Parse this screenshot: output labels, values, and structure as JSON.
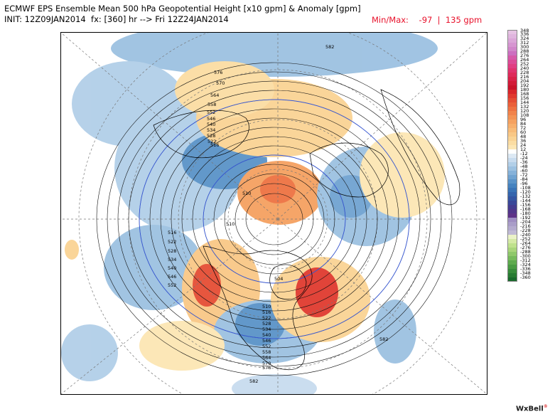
{
  "header": {
    "title_line1": "ECMWF EPS Ensemble Mean 500 hPa Geopotential Height [x10 gpm] & Anomaly [gpm]",
    "title_line2": "INIT: 12Z09JAN2014  fx: [360] hr --> Fri 12Z24JAN2014",
    "minmax": "Min/Max:    -97  |  135 gpm"
  },
  "colorbar": {
    "levels": [
      {
        "label": "348",
        "color": "#e6c3e3"
      },
      {
        "label": "336",
        "color": "#e0b5de"
      },
      {
        "label": "324",
        "color": "#dba6d8"
      },
      {
        "label": "312",
        "color": "#d696d1"
      },
      {
        "label": "300",
        "color": "#d186ca"
      },
      {
        "label": "288",
        "color": "#cc6fc0"
      },
      {
        "label": "276",
        "color": "#d65aa9"
      },
      {
        "label": "264",
        "color": "#dc4b96"
      },
      {
        "label": "252",
        "color": "#e03e82"
      },
      {
        "label": "240",
        "color": "#e0336d"
      },
      {
        "label": "228",
        "color": "#de2a5a"
      },
      {
        "label": "216",
        "color": "#d92248"
      },
      {
        "label": "204",
        "color": "#d21b38"
      },
      {
        "label": "192",
        "color": "#c9142b"
      },
      {
        "label": "180",
        "color": "#d8262b"
      },
      {
        "label": "168",
        "color": "#e03a2f"
      },
      {
        "label": "156",
        "color": "#e54e34"
      },
      {
        "label": "144",
        "color": "#ea603a"
      },
      {
        "label": "132",
        "color": "#ee7242"
      },
      {
        "label": "120",
        "color": "#f1834b"
      },
      {
        "label": "108",
        "color": "#f39355"
      },
      {
        "label": "96",
        "color": "#f5a160"
      },
      {
        "label": "84",
        "color": "#f7af6c"
      },
      {
        "label": "72",
        "color": "#f8bc79"
      },
      {
        "label": "60",
        "color": "#f9c886"
      },
      {
        "label": "48",
        "color": "#fad394"
      },
      {
        "label": "36",
        "color": "#fbdda3"
      },
      {
        "label": "24",
        "color": "#fce6b4"
      },
      {
        "label": "12",
        "color": "#ffffff"
      },
      {
        "label": "-12",
        "color": "#dde9f4"
      },
      {
        "label": "-24",
        "color": "#c8dcef"
      },
      {
        "label": "-36",
        "color": "#b2cfe8"
      },
      {
        "label": "-48",
        "color": "#9cc1e1"
      },
      {
        "label": "-60",
        "color": "#86b2d9"
      },
      {
        "label": "-72",
        "color": "#70a3d1"
      },
      {
        "label": "-84",
        "color": "#5a93c8"
      },
      {
        "label": "-96",
        "color": "#4683bf"
      },
      {
        "label": "-108",
        "color": "#3a74b7"
      },
      {
        "label": "-120",
        "color": "#3565ad"
      },
      {
        "label": "-132",
        "color": "#3556a3"
      },
      {
        "label": "-144",
        "color": "#3a4899"
      },
      {
        "label": "-156",
        "color": "#453d8f"
      },
      {
        "label": "-168",
        "color": "#51368a"
      },
      {
        "label": "-180",
        "color": "#5e3287"
      },
      {
        "label": "-192",
        "color": "#9f8ec2"
      },
      {
        "label": "-204",
        "color": "#a99dc8"
      },
      {
        "label": "-216",
        "color": "#b4abce"
      },
      {
        "label": "-228",
        "color": "#c0bad5"
      },
      {
        "label": "-240",
        "color": "#ebf3c8"
      },
      {
        "label": "-252",
        "color": "#d5eaa6"
      },
      {
        "label": "-264",
        "color": "#bfe18d"
      },
      {
        "label": "-276",
        "color": "#a8d57b"
      },
      {
        "label": "-288",
        "color": "#8fc86b"
      },
      {
        "label": "-300",
        "color": "#76ba5c"
      },
      {
        "label": "-312",
        "color": "#5fab4f"
      },
      {
        "label": "-324",
        "color": "#4a9c44"
      },
      {
        "label": "-336",
        "color": "#388c3b"
      },
      {
        "label": "-348",
        "color": "#287b33"
      },
      {
        "label": "-360",
        "color": "#1a6a2c"
      }
    ]
  },
  "map": {
    "contour_labels": [
      "582",
      "576",
      "570",
      "564",
      "558",
      "552",
      "546",
      "540",
      "534",
      "528",
      "522",
      "516",
      "510",
      "516",
      "522",
      "528",
      "534",
      "540",
      "546",
      "552",
      "510",
      "504",
      "510",
      "516",
      "522",
      "528",
      "534",
      "540",
      "546",
      "552",
      "558",
      "564",
      "570",
      "576",
      "582",
      "582"
    ],
    "anomaly_colors": {
      "positive": "#f9c886",
      "strong_positive": "#e03a2f",
      "negative": "#9cc1e1",
      "strong_negative": "#4683bf"
    }
  },
  "brand": {
    "logo": "WxBell"
  }
}
